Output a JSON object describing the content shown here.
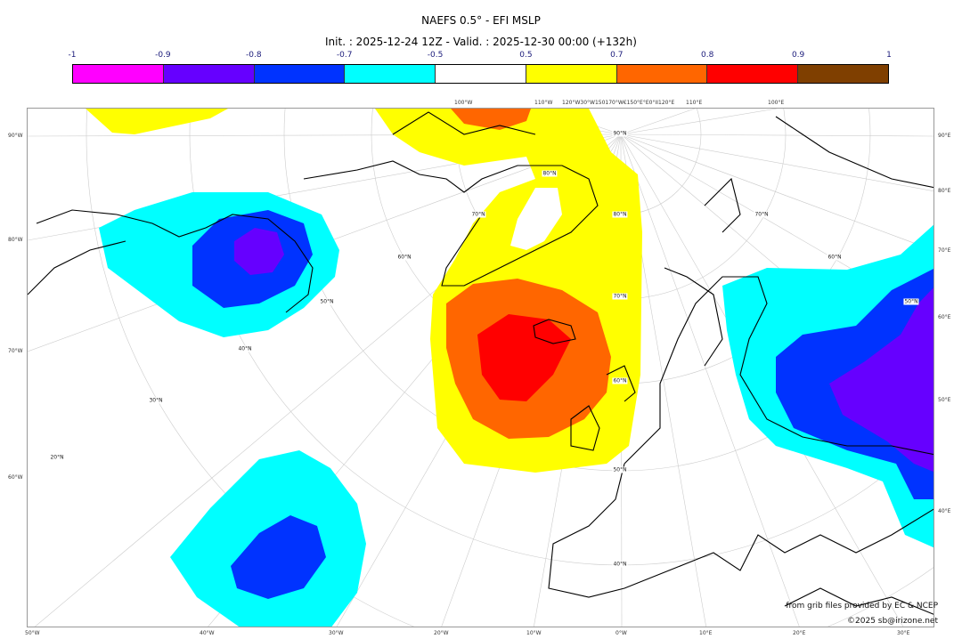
{
  "title": "NAEFS 0.5° - EFI MSLP",
  "subtitle": "Init. : 2025-12-24 12Z - Valid. : 2025-12-30 00:00 (+132h)",
  "colorbar": {
    "ticks": [
      "-1",
      "-0.9",
      "-0.8",
      "-0.7",
      "-0.5",
      "0.5",
      "0.7",
      "0.8",
      "0.9",
      "1"
    ],
    "colors": [
      "#ff00ff",
      "#6600ff",
      "#0033ff",
      "#00ffff",
      "#ffffff",
      "#ffff00",
      "#ff6600",
      "#ff0000",
      "#7f3f00"
    ]
  },
  "axes": {
    "top": [
      "100°W",
      "110°W",
      "120°W30°W150170°W€150°E°E0°II120°E",
      "110°E",
      "100°E"
    ],
    "left": [
      "90°W",
      "80°W",
      "70°W",
      "60°W"
    ],
    "right": [
      "90°E",
      "80°E",
      "70°E",
      "60°E",
      "50°E",
      "40°E"
    ],
    "bottom": [
      "50°W",
      "40°W",
      "30°W",
      "20°W",
      "10°W",
      "0°W",
      "10°E",
      "20°E",
      "30°E"
    ]
  },
  "lat_labels": [
    "90°N",
    "80°N",
    "80°N",
    "70°N",
    "70°N",
    "70°N",
    "60°N",
    "60°N",
    "60°N",
    "50°N",
    "50°N",
    "50°N",
    "40°N",
    "40°N",
    "30°N",
    "20°N"
  ],
  "credits": [
    "from grib files provided by EC & NCEP",
    "©2025 sb@irizone.net"
  ]
}
